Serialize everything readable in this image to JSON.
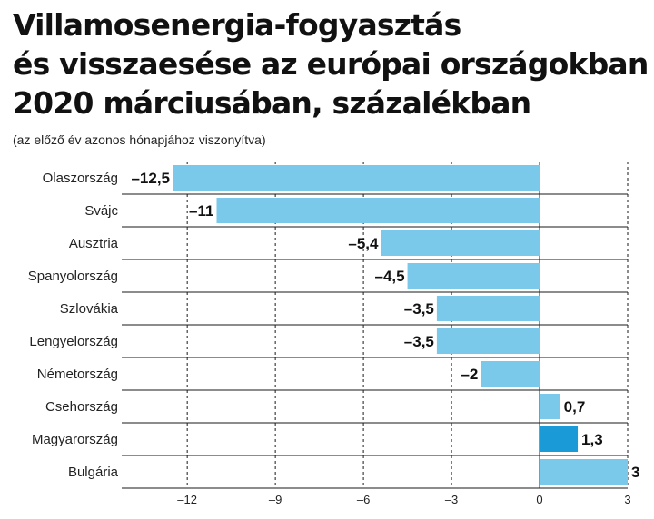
{
  "chart_data": {
    "type": "bar",
    "orientation": "horizontal",
    "title_lines": [
      "Villamosenergia-fogyasztás",
      "és visszaesése az európai országokban",
      "2020 márciusában, százalékban"
    ],
    "subtitle": "(az előző év azonos hónapjához viszonyítva)",
    "categories": [
      "Olaszország",
      "Svájc",
      "Ausztria",
      "Spanyolország",
      "Szlovákia",
      "Lengyelország",
      "Németország",
      "Csehország",
      "Magyarország",
      "Bulgária"
    ],
    "values": [
      -12.5,
      -11,
      -5.4,
      -4.5,
      -3.5,
      -3.5,
      -2,
      0.7,
      1.3,
      3
    ],
    "value_labels": [
      "–12,5",
      "–11",
      "–5,4",
      "–4,5",
      "–3,5",
      "–3,5",
      "–2",
      "0,7",
      "1,3",
      "3"
    ],
    "x_ticks": [
      -12,
      -9,
      -6,
      -3,
      0,
      3
    ],
    "x_tick_labels": [
      "–12",
      "–9",
      "–6",
      "–3",
      "0",
      "3"
    ],
    "xlim": [
      -12.5,
      3
    ],
    "grid": true,
    "bar_color": "#7ac9ea",
    "highlight_category": "Magyarország",
    "highlight_color": "#1a9ad6"
  }
}
